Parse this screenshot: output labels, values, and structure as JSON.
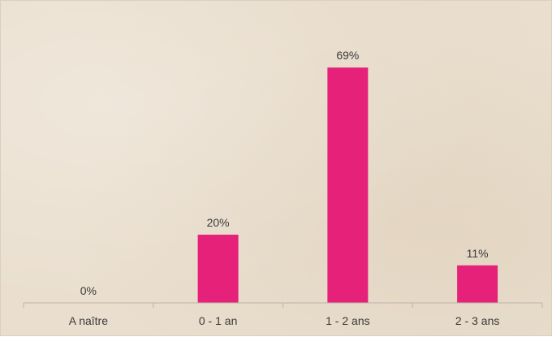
{
  "chart_data": {
    "type": "bar",
    "categories": [
      "A naître",
      "0 - 1 an",
      "1 - 2 ans",
      "2 - 3 ans"
    ],
    "values": [
      0,
      20,
      69,
      11
    ],
    "data_labels": [
      "0%",
      "20%",
      "69%",
      "11%"
    ],
    "title": "",
    "xlabel": "",
    "ylabel": "",
    "ylim": [
      0,
      80
    ],
    "grid": false,
    "legend": "none",
    "bar_color": "#e5217a",
    "axis_color": "#bdb5a8"
  }
}
